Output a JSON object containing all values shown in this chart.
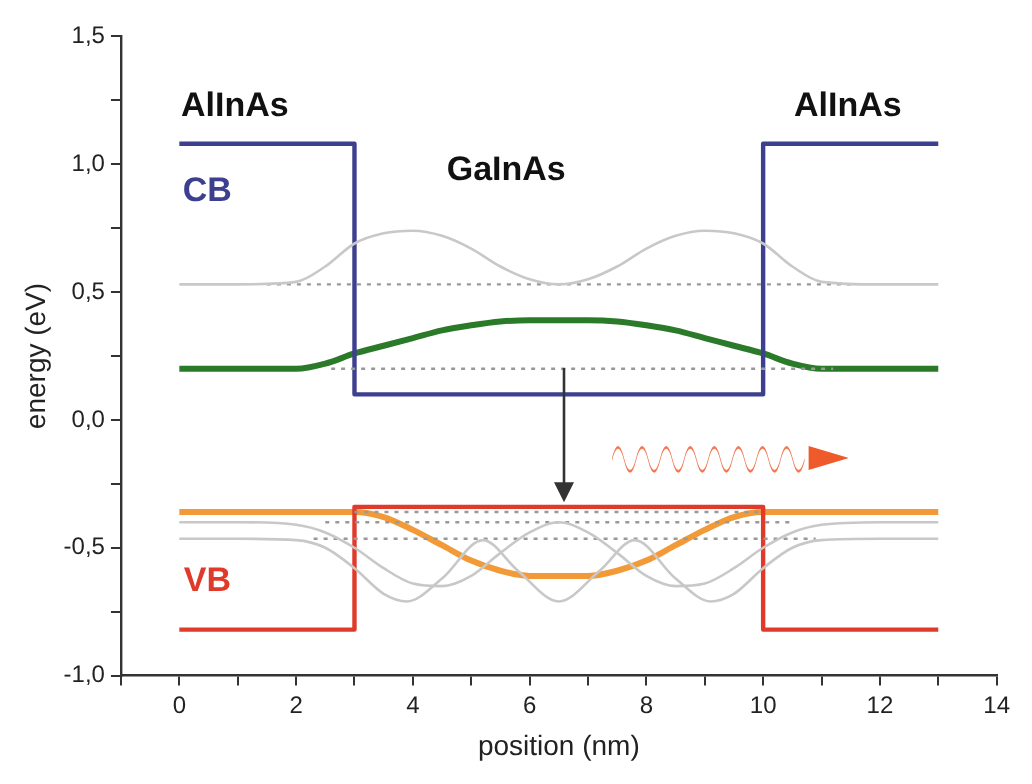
{
  "chart_data": {
    "type": "line",
    "xlabel": "position (nm)",
    "ylabel": "energy (eV)",
    "xlim": [
      -1,
      14
    ],
    "xticks": [
      {
        "value": -1,
        "label": null
      },
      0,
      {
        "value": 1,
        "label": null
      },
      2,
      {
        "value": 3,
        "label": null
      },
      4,
      {
        "value": 5,
        "label": null
      },
      6,
      {
        "value": 7,
        "label": null
      },
      8,
      {
        "value": 9,
        "label": null
      },
      10,
      {
        "value": 11,
        "label": null
      },
      12,
      {
        "value": 13,
        "label": null
      },
      14
    ],
    "ylim": [
      -1,
      1.5
    ],
    "yticks": [
      {
        "value": -1,
        "label": "-1,0"
      },
      {
        "value": -0.75,
        "label": null
      },
      {
        "value": -0.5,
        "label": "-0,5"
      },
      {
        "value": -0.25,
        "label": null
      },
      {
        "value": 0,
        "label": "0,0"
      },
      {
        "value": 0.25,
        "label": null
      },
      {
        "value": 0.5,
        "label": "0,5"
      },
      {
        "value": 0.75,
        "label": null
      },
      {
        "value": 1,
        "label": "1,0"
      },
      {
        "value": 1.25,
        "label": null
      },
      {
        "value": 1.5,
        "label": "1,5"
      }
    ],
    "legend": false,
    "marker": "none",
    "annotations": [
      "AlInAs",
      "AlInAs",
      "GaInAs"
    ],
    "series": [
      {
        "color": "#c8c8c8",
        "x": [
          0,
          1,
          2,
          2.5,
          3,
          3.5,
          4,
          4.5,
          5,
          5.5,
          6,
          6.5,
          7,
          7.5,
          8,
          8.5,
          9,
          9.5,
          10,
          10.5,
          11,
          12,
          13
        ],
        "values": [
          0.53,
          0.53,
          0.54,
          0.6,
          0.69,
          0.73,
          0.74,
          0.72,
          0.67,
          0.6,
          0.55,
          0.53,
          0.55,
          0.6,
          0.67,
          0.72,
          0.74,
          0.73,
          0.69,
          0.6,
          0.54,
          0.53,
          0.53
        ]
      },
      {
        "color": "#c8c8c8",
        "x": [
          0,
          1,
          2,
          2.5,
          3,
          3.5,
          4,
          4.5,
          5,
          5.5,
          6,
          6.5,
          7,
          7.5,
          8,
          8.5,
          9,
          9.5,
          10,
          10.5,
          11,
          12,
          13
        ],
        "values": [
          -0.4,
          -0.4,
          -0.41,
          -0.44,
          -0.5,
          -0.58,
          -0.64,
          -0.65,
          -0.61,
          -0.52,
          -0.44,
          -0.4,
          -0.44,
          -0.52,
          -0.61,
          -0.65,
          -0.64,
          -0.58,
          -0.5,
          -0.44,
          -0.41,
          -0.4,
          -0.4
        ]
      },
      {
        "color": "#c8c8c8",
        "x": [
          0,
          1,
          2,
          2.5,
          3,
          3.5,
          3.9,
          4.5,
          5.2,
          5.8,
          6.5,
          7.2,
          7.8,
          8.5,
          9.1,
          9.5,
          10,
          10.5,
          11,
          12,
          13
        ],
        "values": [
          -0.465,
          -0.465,
          -0.47,
          -0.5,
          -0.58,
          -0.68,
          -0.71,
          -0.62,
          -0.47,
          -0.59,
          -0.71,
          -0.59,
          -0.47,
          -0.62,
          -0.71,
          -0.68,
          -0.58,
          -0.5,
          -0.47,
          -0.465,
          -0.465
        ]
      },
      {
        "color": "#999999",
        "line_style": "dotted",
        "x": [
          1.5,
          11.6
        ],
        "values": [
          0.53,
          0.53
        ]
      },
      {
        "color": "#999999",
        "line_style": "dotted",
        "x": [
          2.6,
          11.2
        ],
        "values": [
          0.2,
          0.2
        ]
      },
      {
        "color": "#999999",
        "line_style": "dotted",
        "x": [
          3,
          10
        ],
        "values": [
          -0.36,
          -0.36
        ]
      },
      {
        "color": "#999999",
        "line_style": "dotted",
        "x": [
          2.5,
          10.5
        ],
        "values": [
          -0.4,
          -0.4
        ]
      },
      {
        "color": "#999999",
        "line_style": "dotted",
        "x": [
          2.3,
          10.9
        ],
        "values": [
          -0.465,
          -0.465
        ]
      },
      {
        "name": "CB",
        "color": "#3d3f8f",
        "x": [
          0,
          3,
          3,
          10,
          10,
          13
        ],
        "values": [
          1.08,
          1.08,
          0.1,
          0.1,
          1.08,
          1.08
        ]
      },
      {
        "name": "VB",
        "color": "#e03a2a",
        "x": [
          0,
          3,
          3,
          10,
          10,
          13
        ],
        "values": [
          -0.82,
          -0.82,
          -0.34,
          -0.34,
          -0.82,
          -0.82
        ]
      },
      {
        "color": "#2a7a2a",
        "x": [
          0,
          1,
          2,
          2.5,
          3,
          3.5,
          4,
          4.5,
          5,
          5.5,
          6,
          6.5,
          7,
          7.5,
          8,
          8.5,
          9,
          9.5,
          10,
          10.5,
          11,
          12,
          13
        ],
        "values": [
          0.2,
          0.2,
          0.2,
          0.22,
          0.26,
          0.29,
          0.32,
          0.35,
          0.37,
          0.385,
          0.39,
          0.39,
          0.39,
          0.385,
          0.37,
          0.35,
          0.32,
          0.29,
          0.26,
          0.22,
          0.2,
          0.2,
          0.2
        ]
      },
      {
        "color": "#f29a38",
        "x": [
          0,
          1,
          2,
          2.5,
          3,
          3.5,
          4,
          4.5,
          5,
          5.5,
          6,
          6.5,
          7,
          7.5,
          8,
          8.5,
          9,
          9.5,
          10,
          10.5,
          11,
          12,
          13
        ],
        "values": [
          -0.36,
          -0.36,
          -0.36,
          -0.36,
          -0.36,
          -0.38,
          -0.43,
          -0.49,
          -0.55,
          -0.59,
          -0.61,
          -0.61,
          -0.61,
          -0.59,
          -0.55,
          -0.49,
          -0.43,
          -0.38,
          -0.36,
          -0.36,
          -0.36,
          -0.36,
          -0.36
        ]
      }
    ]
  }
}
